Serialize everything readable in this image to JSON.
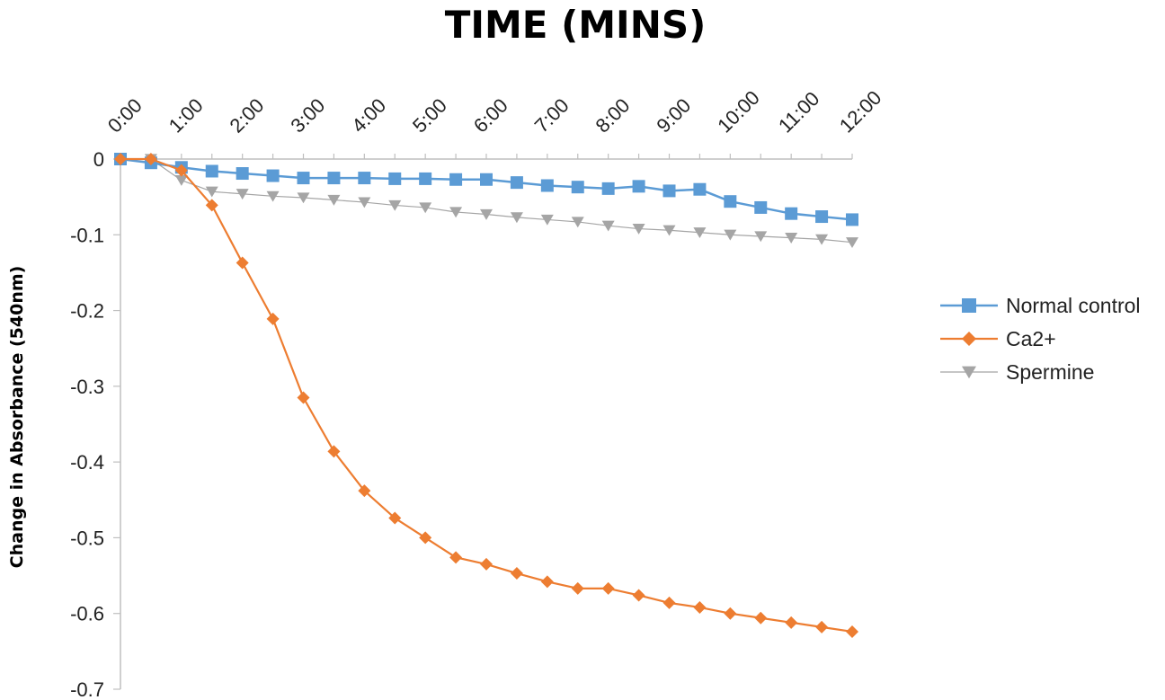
{
  "chart_data": {
    "type": "line",
    "title": "TIME (MINS)",
    "xlabel": "",
    "ylabel": "Change in Absorbance (540nm)",
    "x_tick_labels": [
      "0:00",
      "1:00",
      "2:00",
      "3:00",
      "4:00",
      "5:00",
      "6:00",
      "7:00",
      "8:00",
      "9:00",
      "10:00",
      "11:00",
      "12:00"
    ],
    "x": [
      0,
      0.5,
      1,
      1.5,
      2,
      2.5,
      3,
      3.5,
      4,
      4.5,
      5,
      5.5,
      6,
      6.5,
      7,
      7.5,
      8,
      8.5,
      9,
      9.5,
      10,
      10.5,
      11,
      11.5,
      12
    ],
    "y_ticks": [
      0,
      -0.1,
      -0.2,
      -0.3,
      -0.4,
      -0.5,
      -0.6,
      -0.7
    ],
    "y_tick_labels": [
      "0",
      "-0.1",
      "-0.2",
      "-0.3",
      "-0.4",
      "-0.5",
      "-0.6",
      "-0.7"
    ],
    "ylim": [
      -0.7,
      0
    ],
    "xlim": [
      0,
      12
    ],
    "x_axis_position": "top",
    "grid": false,
    "legend_position": "right",
    "series": [
      {
        "name": "Normal control",
        "color": "#5b9bd5",
        "marker": "square",
        "values": [
          0,
          -0.005,
          -0.011,
          -0.016,
          -0.019,
          -0.022,
          -0.025,
          -0.025,
          -0.025,
          -0.026,
          -0.026,
          -0.027,
          -0.027,
          -0.031,
          -0.035,
          -0.037,
          -0.039,
          -0.036,
          -0.042,
          -0.04,
          -0.056,
          -0.064,
          -0.072,
          -0.076,
          -0.08
        ]
      },
      {
        "name": "Ca2+",
        "color": "#ed7d31",
        "marker": "diamond",
        "values": [
          0,
          0,
          -0.015,
          -0.061,
          -0.137,
          -0.211,
          -0.315,
          -0.386,
          -0.438,
          -0.474,
          -0.5,
          -0.526,
          -0.535,
          -0.547,
          -0.558,
          -0.567,
          -0.567,
          -0.576,
          -0.586,
          -0.592,
          -0.6,
          -0.606,
          -0.612,
          -0.618,
          -0.624
        ]
      },
      {
        "name": "Spermine",
        "color": "#a5a5a5",
        "marker": "triangle-down",
        "values": [
          0,
          0,
          -0.028,
          -0.043,
          -0.046,
          -0.049,
          -0.051,
          -0.054,
          -0.057,
          -0.061,
          -0.064,
          -0.07,
          -0.073,
          -0.077,
          -0.08,
          -0.083,
          -0.088,
          -0.092,
          -0.094,
          -0.097,
          -0.1,
          -0.102,
          -0.104,
          -0.106,
          -0.11
        ]
      }
    ]
  }
}
